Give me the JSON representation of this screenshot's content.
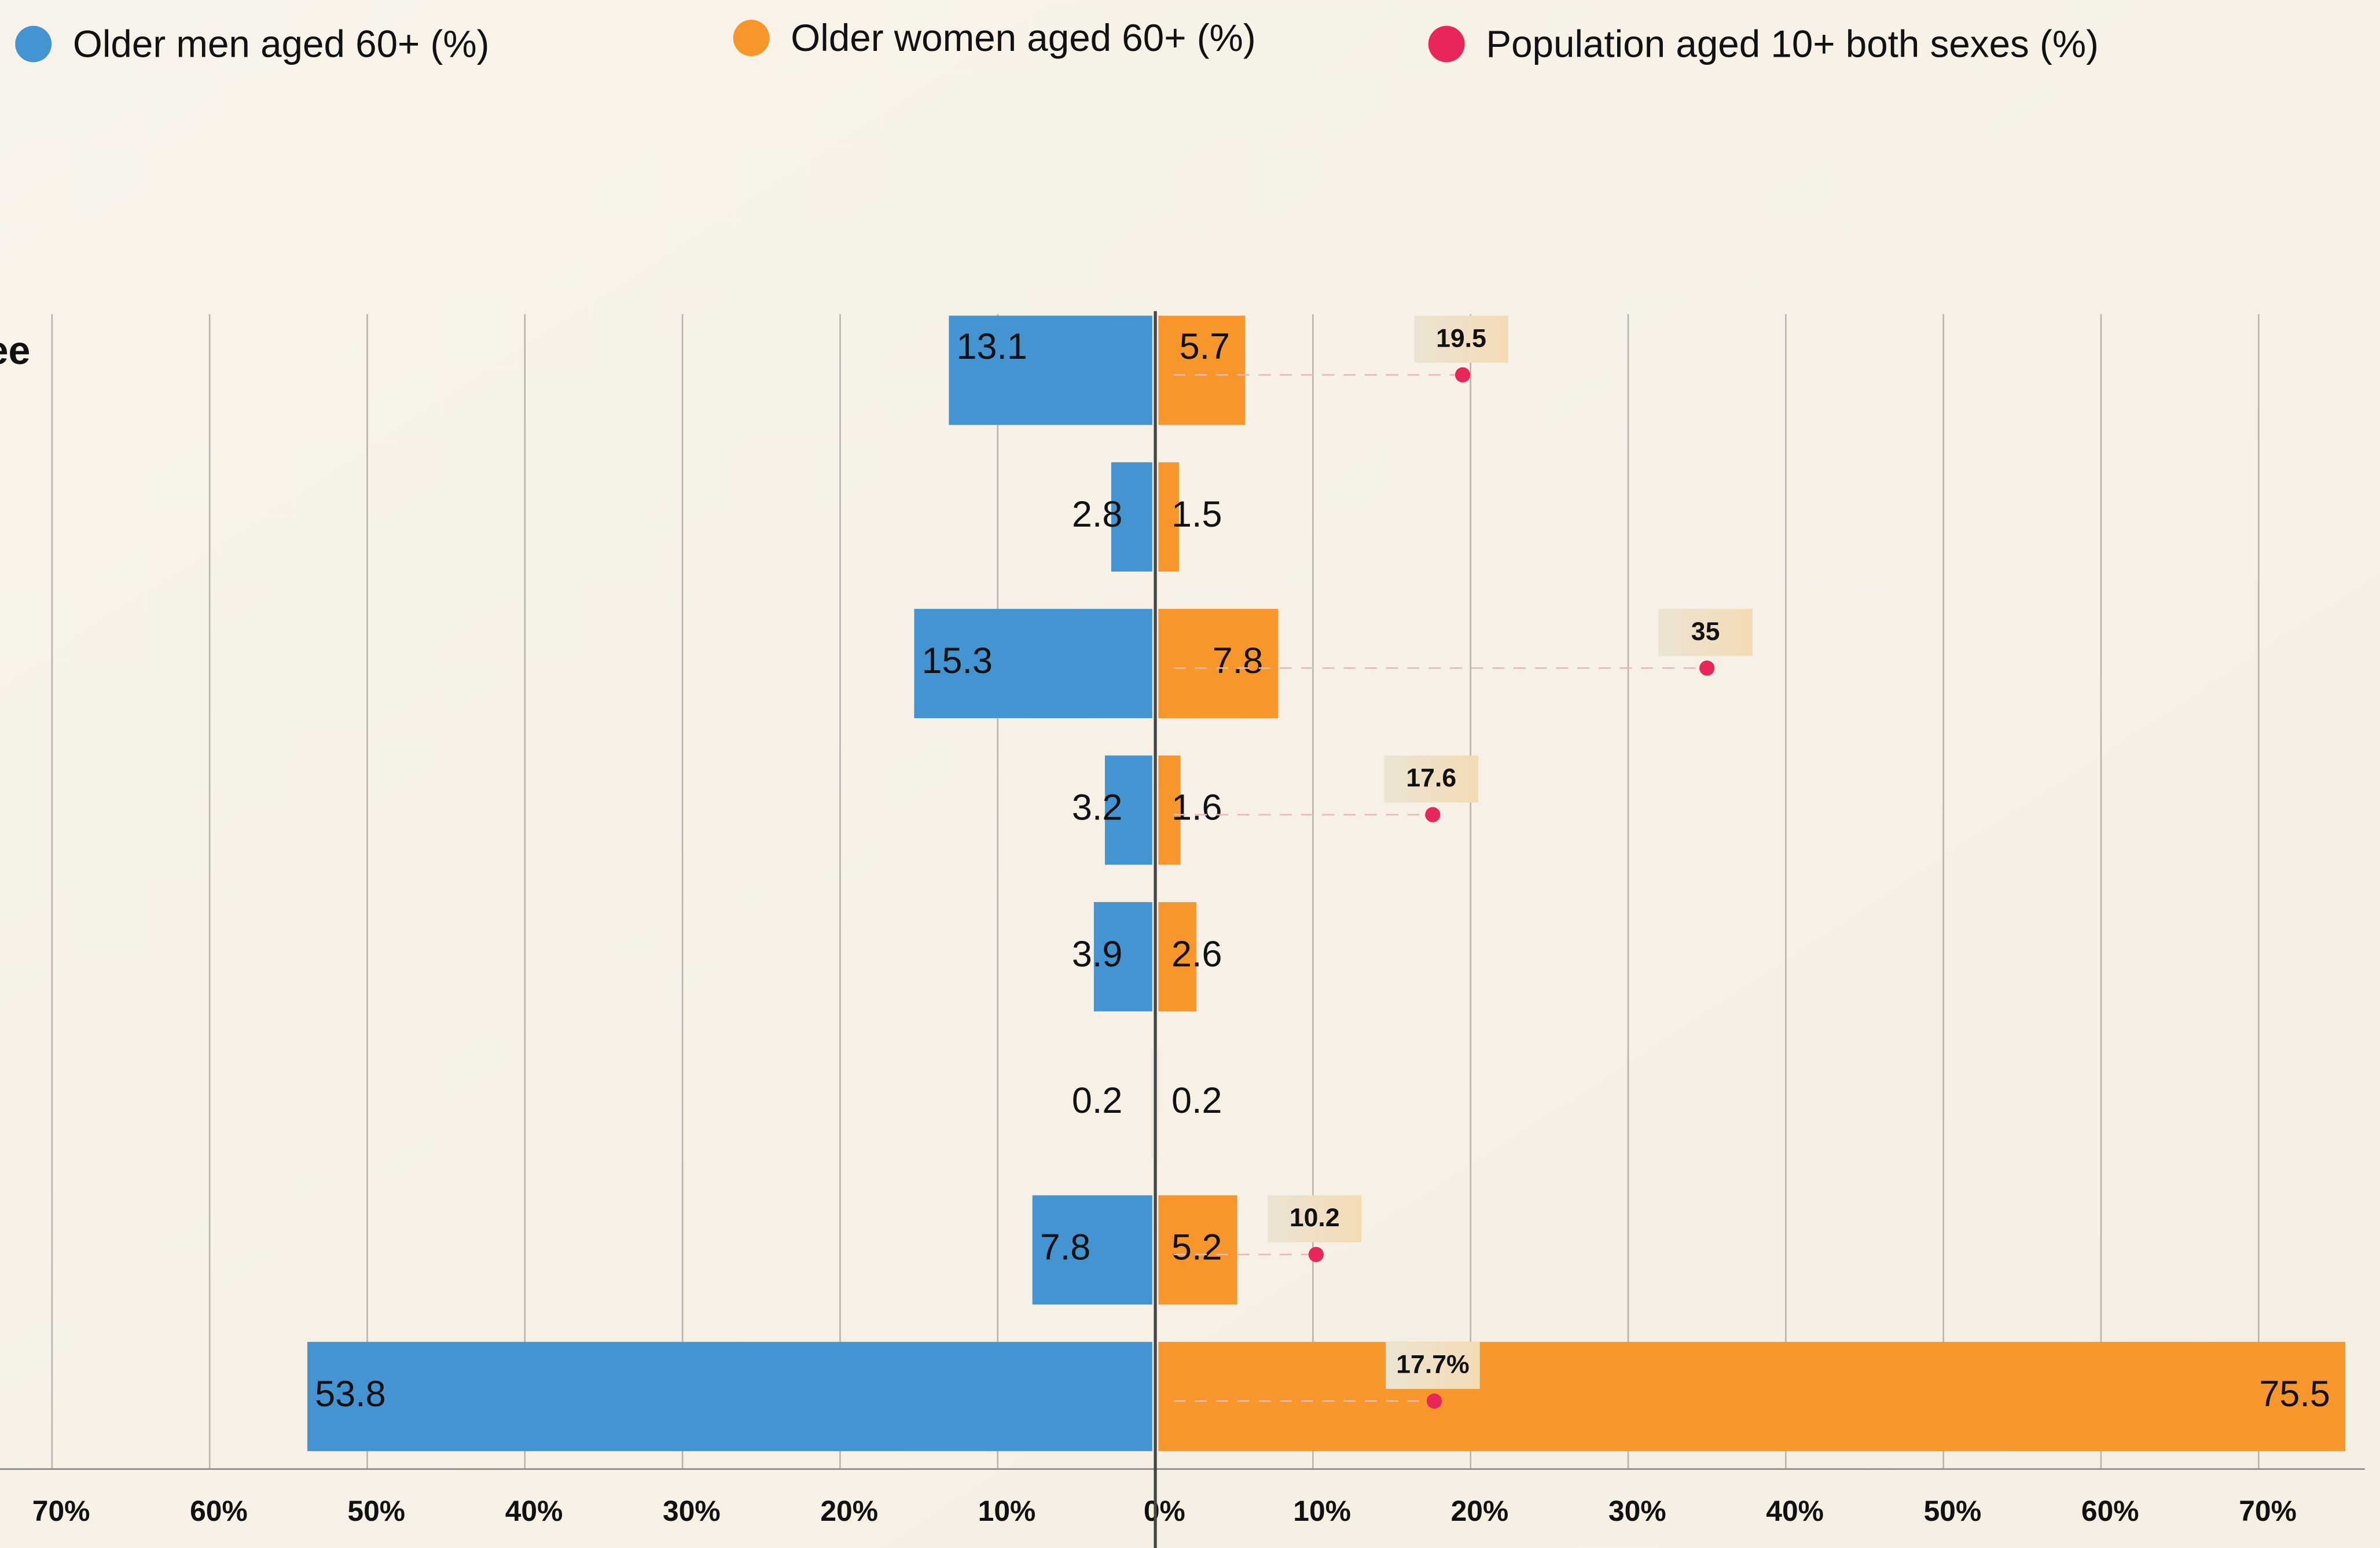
{
  "chart_data": {
    "type": "diverging-bar",
    "categories": [
      "ee",
      null,
      null,
      null,
      null,
      null,
      null,
      null
    ],
    "series": [
      {
        "name": "Older men aged 60+ (%)",
        "color": "#4394d1",
        "side": "left",
        "values": [
          13.1,
          2.8,
          15.3,
          3.2,
          3.9,
          0.2,
          7.8,
          53.8
        ]
      },
      {
        "name": "Older women aged 60+ (%)",
        "color": "#f7962a",
        "side": "right",
        "values": [
          5.7,
          1.5,
          7.8,
          1.6,
          2.6,
          0.2,
          5.2,
          75.5
        ]
      },
      {
        "name": "Population aged 10+  both sexes (%)",
        "color": "#e8265a",
        "side": "right",
        "kind": "dot",
        "values": [
          19.5,
          null,
          35,
          17.6,
          null,
          null,
          10.2,
          17.7
        ],
        "value_labels": [
          "19.5",
          null,
          "35",
          "17.6",
          null,
          null,
          "10.2",
          "17.7%"
        ]
      }
    ],
    "xlim": [
      -73.3,
      77.7
    ],
    "xticks": [
      {
        "value": -70,
        "label": "70%"
      },
      {
        "value": -60,
        "label": "60%"
      },
      {
        "value": -50,
        "label": "50%"
      },
      {
        "value": -40,
        "label": "40%"
      },
      {
        "value": -30,
        "label": "30%"
      },
      {
        "value": -20,
        "label": "20%"
      },
      {
        "value": -10,
        "label": "10%"
      },
      {
        "value": 0,
        "label": "0%"
      },
      {
        "value": 10,
        "label": "10%"
      },
      {
        "value": 20,
        "label": "20%"
      },
      {
        "value": 30,
        "label": "30%"
      },
      {
        "value": 40,
        "label": "40%"
      },
      {
        "value": 50,
        "label": "50%"
      },
      {
        "value": 60,
        "label": "60%"
      },
      {
        "value": 70,
        "label": "70%"
      }
    ],
    "grid": true
  }
}
